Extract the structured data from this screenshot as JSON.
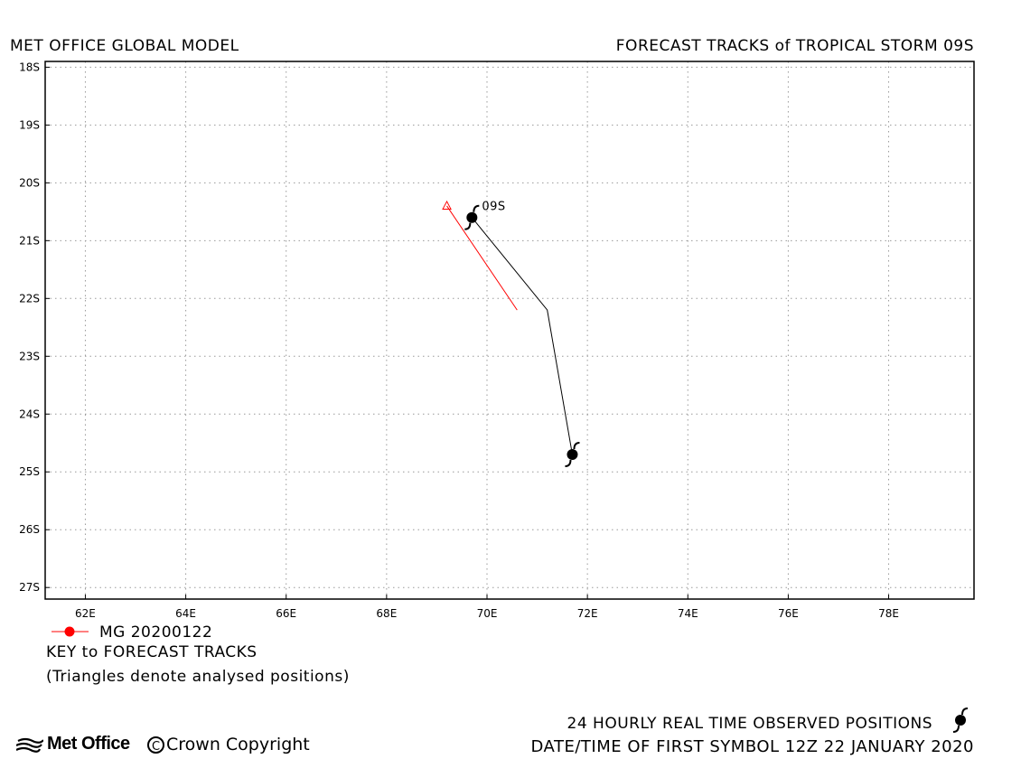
{
  "header": {
    "left_title": "MET OFFICE GLOBAL MODEL",
    "right_title": "FORECAST TRACKS of TROPICAL STORM 09S"
  },
  "map": {
    "lon_range": [
      61.2,
      79.7
    ],
    "lat_range": [
      -17.9,
      -27.2
    ],
    "lat_ticks": [
      {
        "value": -18,
        "label": "18S"
      },
      {
        "value": -19,
        "label": "19S"
      },
      {
        "value": -20,
        "label": "20S"
      },
      {
        "value": -21,
        "label": "21S"
      },
      {
        "value": -22,
        "label": "22S"
      },
      {
        "value": -23,
        "label": "23S"
      },
      {
        "value": -24,
        "label": "24S"
      },
      {
        "value": -25,
        "label": "25S"
      },
      {
        "value": -26,
        "label": "26S"
      },
      {
        "value": -27,
        "label": "27S"
      }
    ],
    "lon_ticks": [
      {
        "value": 62,
        "label": "62E"
      },
      {
        "value": 64,
        "label": "64E"
      },
      {
        "value": 66,
        "label": "66E"
      },
      {
        "value": 68,
        "label": "68E"
      },
      {
        "value": 70,
        "label": "70E"
      },
      {
        "value": 72,
        "label": "72E"
      },
      {
        "value": 74,
        "label": "74E"
      },
      {
        "value": 76,
        "label": "76E"
      },
      {
        "value": 78,
        "label": "78E"
      }
    ],
    "grid": "dotted",
    "storm_label": "09S"
  },
  "tracks": {
    "observed": {
      "color": "#000000",
      "points": [
        [
          69.7,
          -20.6
        ],
        [
          71.2,
          -22.2
        ],
        [
          71.7,
          -24.7
        ]
      ],
      "symbols": [
        [
          69.7,
          -20.6
        ],
        [
          71.7,
          -24.7
        ]
      ]
    },
    "forecast": {
      "name": "MG 20200122",
      "color": "#ff0000",
      "analysed_position": [
        69.2,
        -20.4
      ],
      "points": [
        [
          69.2,
          -20.4
        ],
        [
          70.6,
          -22.2
        ]
      ]
    }
  },
  "legend": {
    "entry_label": "MG 20200122",
    "key_title": "KEY to FORECAST TRACKS",
    "key_note": "(Triangles denote analysed positions)"
  },
  "footer": {
    "observed_label": "24 HOURLY REAL TIME OBSERVED POSITIONS",
    "datetime_label": "DATE/TIME OF FIRST SYMBOL 12Z 22 JANUARY 2020",
    "logo_text": "Met Office",
    "copyright_symbol": "C",
    "copyright_text": "Crown Copyright"
  }
}
